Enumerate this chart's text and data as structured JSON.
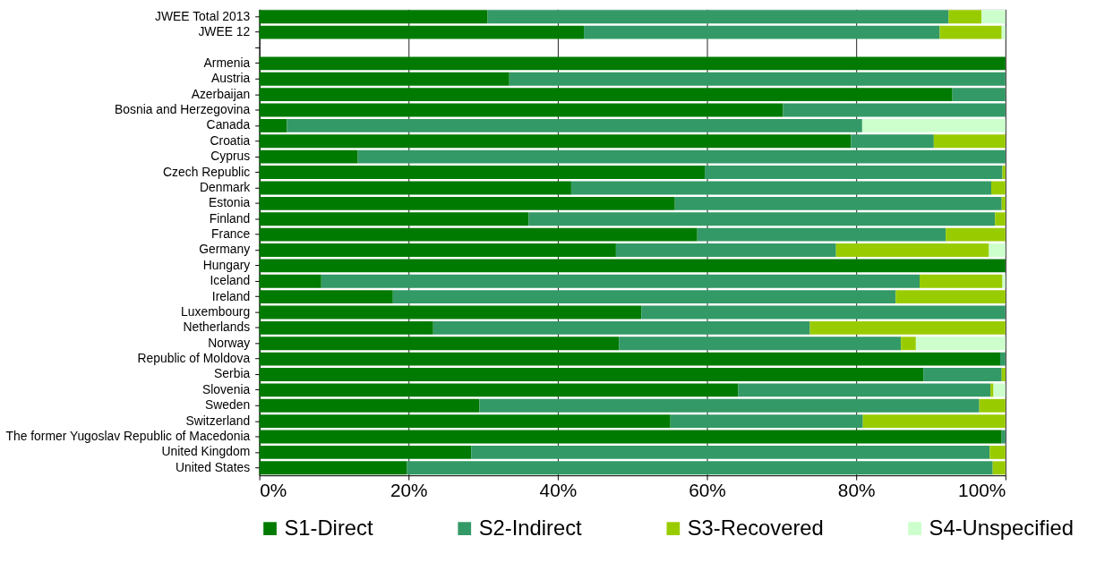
{
  "chart_data": {
    "type": "bar",
    "orientation": "horizontal",
    "stacked": true,
    "categories": [
      "JWEE Total 2013",
      "JWEE 12",
      null,
      "Armenia",
      "Austria",
      "Azerbaijan",
      "Bosnia and Herzegovina",
      "Canada",
      "Croatia",
      "Cyprus",
      "Czech Republic",
      "Denmark",
      "Estonia",
      "Finland",
      "France",
      "Germany",
      "Hungary",
      "Iceland",
      "Ireland",
      "Luxembourg",
      "Netherlands",
      "Norway",
      "Republic of Moldova",
      "Serbia",
      "Slovenia",
      "Sweden",
      "Switzerland",
      "The former Yugoslav Republic of Macedonia",
      "United Kingdom",
      "United States"
    ],
    "series": [
      {
        "name": "S1-Direct",
        "color": "#007a00",
        "values": [
          30.6,
          43.5,
          null,
          100,
          33.5,
          92.9,
          70.2,
          3.7,
          79.3,
          13.2,
          59.7,
          41.8,
          55.7,
          36.1,
          58.7,
          47.8,
          100,
          8.3,
          17.9,
          51.2,
          23.3,
          48.2,
          99.3,
          89.0,
          64.2,
          29.5,
          55.1,
          99.5,
          28.4,
          19.8
        ]
      },
      {
        "name": "S2-Indirect",
        "color": "#339966",
        "values": [
          61.8,
          47.7,
          null,
          0,
          66.5,
          7.1,
          29.8,
          77.1,
          11.1,
          86.8,
          39.9,
          56.3,
          43.8,
          62.5,
          33.3,
          29.5,
          0,
          80.2,
          67.4,
          48.8,
          50.5,
          37.8,
          0.7,
          10.5,
          33.8,
          67.0,
          25.8,
          0.5,
          69.5,
          78.5
        ]
      },
      {
        "name": "S3-Recovered",
        "color": "#99cc00",
        "values": [
          4.4,
          8.3,
          null,
          0,
          0,
          0,
          0,
          0,
          9.6,
          0,
          0.4,
          1.9,
          0.5,
          1.4,
          8.0,
          20.5,
          0,
          11.1,
          14.7,
          0,
          26.2,
          2.0,
          0,
          0.5,
          0.4,
          3.5,
          19.1,
          0,
          2.1,
          1.7
        ]
      },
      {
        "name": "S4-Unspecified",
        "color": "#ccffcc",
        "values": [
          3.2,
          0.5,
          null,
          0,
          0,
          0,
          0,
          19.2,
          0,
          0,
          0,
          0,
          0,
          0,
          0,
          2.2,
          0,
          0.4,
          0,
          0,
          0,
          12.0,
          0,
          0,
          1.6,
          0,
          0,
          0,
          0,
          0
        ]
      }
    ],
    "xlim": [
      0,
      100
    ],
    "xticks": [
      {
        "value": 0,
        "label": "0%"
      },
      {
        "value": 20,
        "label": "20%"
      },
      {
        "value": 40,
        "label": "40%"
      },
      {
        "value": 60,
        "label": "60%"
      },
      {
        "value": 80,
        "label": "80%"
      },
      {
        "value": 100,
        "label": "100%"
      }
    ],
    "grid": "x",
    "legend": "bottom"
  }
}
